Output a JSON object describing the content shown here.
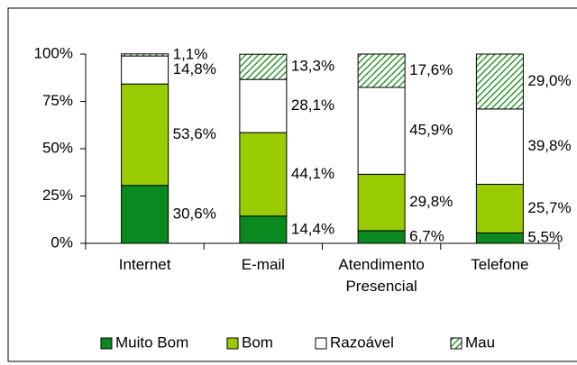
{
  "chart_data": {
    "type": "stacked_bar",
    "categories": [
      "Internet",
      "E-mail",
      "Atendimento Presencial",
      "Telefone"
    ],
    "series": [
      {
        "name": "Muito Bom",
        "color": "#0a8a1e",
        "values": [
          30.6,
          14.4,
          6.7,
          5.5
        ],
        "value_labels": [
          "30,6%",
          "14,4%",
          "6,7%",
          "5,5%"
        ]
      },
      {
        "name": "Bom",
        "color": "#99cc00",
        "values": [
          53.6,
          44.1,
          29.8,
          25.7
        ],
        "value_labels": [
          "53,6%",
          "44,1%",
          "29,8%",
          "25,7%"
        ]
      },
      {
        "name": "Razoável",
        "color": "#ffffff",
        "values": [
          14.8,
          28.1,
          45.9,
          39.8
        ],
        "value_labels": [
          "14,8%",
          "28,1%",
          "45,9%",
          "39,8%"
        ]
      },
      {
        "name": "Mau",
        "color": "#339933",
        "pattern": "hatch",
        "values": [
          1.1,
          13.3,
          17.6,
          29.0
        ],
        "value_labels": [
          "1,1%",
          "13,3%",
          "17,6%",
          "29,0%"
        ]
      }
    ],
    "ylim": [
      0,
      100
    ],
    "yticks": [
      {
        "value": 0,
        "label": "0%"
      },
      {
        "value": 25,
        "label": "25%"
      },
      {
        "value": 50,
        "label": "50%"
      },
      {
        "value": 75,
        "label": "75%"
      },
      {
        "value": 100,
        "label": "100%"
      }
    ],
    "legend": "bottom"
  }
}
